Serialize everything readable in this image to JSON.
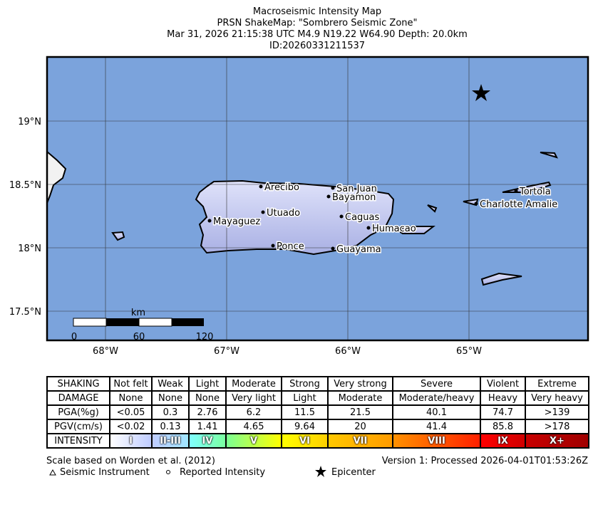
{
  "header": {
    "lines": [
      "Macroseismic Intensity Map",
      "PRSN ShakeMap: \"Sombrero Seismic Zone\"",
      "Mar 31, 2026 21:15:38 UTC M4.9 N19.22 W64.90 Depth: 20.0km",
      "ID:20260331211537"
    ]
  },
  "map": {
    "lat_labels": [
      "19°N",
      "18.5°N",
      "18°N",
      "17.5°N"
    ],
    "lon_labels": [
      "68°W",
      "67°W",
      "66°W",
      "65°W"
    ],
    "cities": [
      "Arecibo",
      "San Juan",
      "Bayamon",
      "Utuado",
      "Caguas",
      "Mayaguez",
      "Humacao",
      "Ponce",
      "Guayama",
      "Tortola",
      "Charlotte Amalie"
    ],
    "scale_bar": {
      "unit": "km",
      "labels": [
        "0",
        "60",
        "120"
      ]
    }
  },
  "legend": {
    "rows": [
      [
        "SHAKING",
        "Not felt",
        "Weak",
        "Light",
        "Moderate",
        "Strong",
        "Very strong",
        "Severe",
        "Violent",
        "Extreme"
      ],
      [
        "DAMAGE",
        "None",
        "None",
        "None",
        "Very light",
        "Light",
        "Moderate",
        "Moderate/heavy",
        "Heavy",
        "Very heavy"
      ],
      [
        "PGA(%g)",
        "<0.05",
        "0.3",
        "2.76",
        "6.2",
        "11.5",
        "21.5",
        "40.1",
        "74.7",
        ">139"
      ],
      [
        "PGV(cm/s)",
        "<0.02",
        "0.13",
        "1.41",
        "4.65",
        "9.64",
        "20",
        "41.4",
        "85.8",
        ">178"
      ],
      [
        "INTENSITY",
        "I",
        "II-III",
        "IV",
        "V",
        "VI",
        "VII",
        "VIII",
        "IX",
        "X+"
      ]
    ],
    "intensity_colors": [
      [
        "#ffffff",
        "#bfccff"
      ],
      [
        "#bfccff",
        "#a0e6ff"
      ],
      [
        "#80ffff",
        "#7affa0"
      ],
      [
        "#7aff93",
        "#ffff00"
      ],
      [
        "#ffff00",
        "#ffd000"
      ],
      [
        "#ffc800",
        "#ff9b00"
      ],
      [
        "#ff9100",
        "#ff2000"
      ],
      [
        "#ff0000",
        "#d00000"
      ],
      [
        "#c80000",
        "#a00000"
      ]
    ]
  },
  "footer": {
    "scale_note": "Scale based on Worden et al. (2012)",
    "version": "Version 1: Processed 2026-04-01T01:53:26Z",
    "instrument": "Seismic Instrument",
    "reported": "Reported Intensity",
    "epicenter": "Epicenter"
  }
}
